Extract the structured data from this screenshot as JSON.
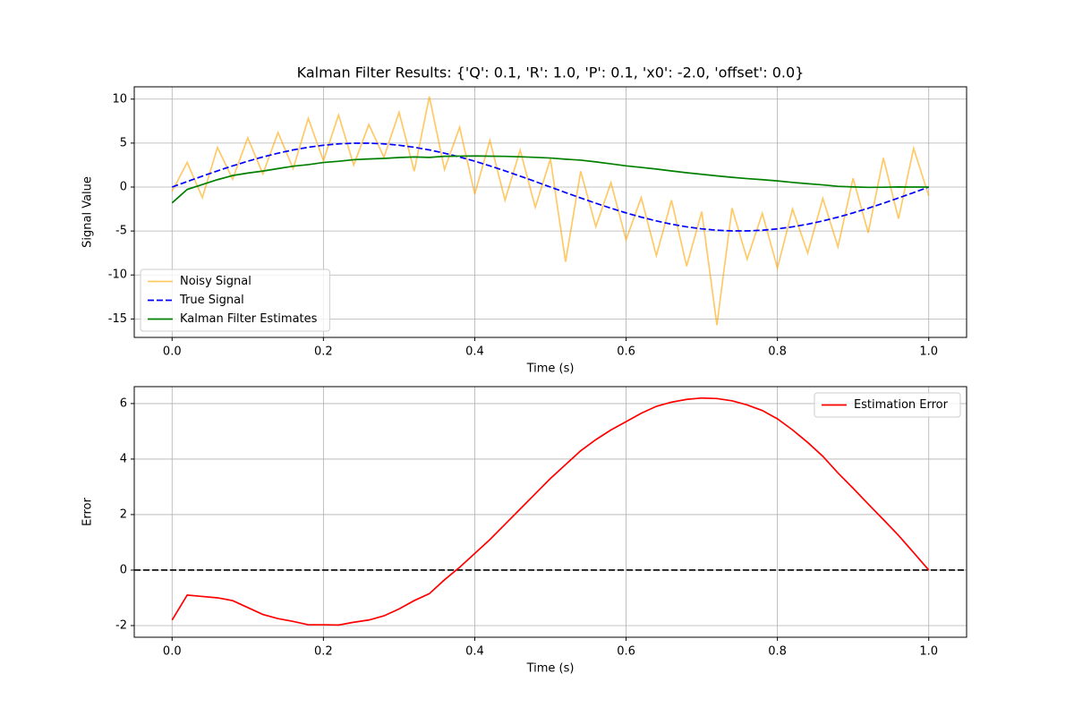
{
  "chart_data": [
    {
      "type": "line",
      "title": "Kalman Filter Results: {'Q': 0.1, 'R': 1.0, 'P': 0.1, 'x0': -2.0, 'offset': 0.0}",
      "x_label": "Time (s)",
      "y_label": "Signal Value",
      "x": [
        0,
        0.02,
        0.04,
        0.06,
        0.08,
        0.1,
        0.12,
        0.14,
        0.16,
        0.18,
        0.2,
        0.22,
        0.24,
        0.26,
        0.28,
        0.3,
        0.32,
        0.34,
        0.36,
        0.38,
        0.4,
        0.42,
        0.44,
        0.46,
        0.48,
        0.5,
        0.52,
        0.54,
        0.56,
        0.58,
        0.6,
        0.62,
        0.64,
        0.66,
        0.68,
        0.7,
        0.72,
        0.74,
        0.76,
        0.78,
        0.8,
        0.82,
        0.84,
        0.86,
        0.88,
        0.9,
        0.92,
        0.94,
        0.96,
        0.98,
        1.0
      ],
      "series": [
        {
          "name": "Noisy Signal",
          "color": "orange",
          "alpha": 0.6,
          "linestyle": "solid",
          "values": [
            -0.5,
            2.8,
            -1.2,
            4.5,
            0.9,
            5.6,
            1.5,
            6.2,
            2.1,
            7.8,
            3.0,
            8.2,
            2.5,
            7.1,
            3.4,
            8.5,
            1.8,
            10.3,
            2.0,
            6.8,
            -0.8,
            5.3,
            -1.5,
            4.2,
            -2.3,
            3.2,
            -8.5,
            1.8,
            -4.5,
            0.5,
            -6.0,
            -1.2,
            -7.8,
            -1.5,
            -9.0,
            -2.8,
            -15.7,
            -2.4,
            -8.2,
            -3.0,
            -9.2,
            -2.5,
            -7.5,
            -1.3,
            -6.8,
            1.0,
            -5.2,
            3.3,
            -3.6,
            4.4,
            -1.0
          ]
        },
        {
          "name": "True Signal",
          "color": "blue",
          "alpha": 1,
          "linestyle": "dashed",
          "values": [
            0,
            0.627,
            1.243,
            1.841,
            2.409,
            2.939,
            3.423,
            3.853,
            4.222,
            4.524,
            4.755,
            4.911,
            4.99,
            4.99,
            4.911,
            4.755,
            4.524,
            4.222,
            3.853,
            3.423,
            2.939,
            2.409,
            1.841,
            1.243,
            0.627,
            0,
            -0.627,
            -1.243,
            -1.841,
            -2.409,
            -2.939,
            -3.423,
            -3.853,
            -4.222,
            -4.524,
            -4.755,
            -4.911,
            -4.99,
            -4.99,
            -4.911,
            -4.755,
            -4.524,
            -4.222,
            -3.853,
            -3.423,
            -2.939,
            -2.409,
            -1.841,
            -1.243,
            -0.627,
            0
          ]
        },
        {
          "name": "Kalman Filter Estimates",
          "color": "green",
          "alpha": 1,
          "linestyle": "solid",
          "values": [
            -1.8,
            -0.27,
            0.29,
            0.84,
            1.31,
            1.59,
            1.82,
            2.1,
            2.37,
            2.55,
            2.79,
            2.93,
            3.11,
            3.19,
            3.26,
            3.36,
            3.42,
            3.37,
            3.5,
            3.52,
            3.54,
            3.51,
            3.49,
            3.44,
            3.38,
            3.3,
            3.17,
            3.06,
            2.86,
            2.64,
            2.41,
            2.23,
            2.05,
            1.83,
            1.63,
            1.45,
            1.27,
            1.11,
            0.96,
            0.84,
            0.7,
            0.53,
            0.38,
            0.25,
            0.08,
            0.01,
            -0.03,
            -0.02,
            0.01,
            0.0,
            0
          ]
        }
      ],
      "xlim": [
        -0.05,
        1.05
      ],
      "ylim": [
        -17.1,
        11.4
      ],
      "xticks": [
        {
          "value": 0,
          "label": "0.0"
        },
        0.2,
        0.4,
        0.6,
        0.8,
        {
          "value": 1,
          "label": "1.0"
        }
      ],
      "yticks": [
        -15,
        -10,
        -5,
        0,
        5,
        10
      ],
      "grid": true,
      "legend": "lower left"
    },
    {
      "type": "line",
      "x_label": "Time (s)",
      "y_label": "Error",
      "x": [
        0,
        0.02,
        0.04,
        0.06,
        0.08,
        0.1,
        0.12,
        0.14,
        0.16,
        0.18,
        0.2,
        0.22,
        0.24,
        0.26,
        0.28,
        0.3,
        0.32,
        0.34,
        0.36,
        0.38,
        0.4,
        0.42,
        0.44,
        0.46,
        0.48,
        0.5,
        0.52,
        0.54,
        0.56,
        0.58,
        0.6,
        0.62,
        0.64,
        0.66,
        0.68,
        0.7,
        0.72,
        0.74,
        0.76,
        0.78,
        0.8,
        0.82,
        0.84,
        0.86,
        0.88,
        0.9,
        0.92,
        0.94,
        0.96,
        0.98,
        1.0
      ],
      "series": [
        {
          "name": "Estimation Error",
          "color": "red",
          "alpha": 1,
          "linestyle": "solid",
          "values": [
            -1.8,
            -0.9,
            -0.95,
            -1.0,
            -1.1,
            -1.35,
            -1.6,
            -1.75,
            -1.85,
            -1.97,
            -1.97,
            -1.98,
            -1.88,
            -1.8,
            -1.65,
            -1.4,
            -1.1,
            -0.85,
            -0.35,
            0.1,
            0.6,
            1.1,
            1.65,
            2.2,
            2.75,
            3.3,
            3.8,
            4.3,
            4.7,
            5.05,
            5.35,
            5.65,
            5.9,
            6.05,
            6.15,
            6.2,
            6.18,
            6.1,
            5.95,
            5.75,
            5.45,
            5.05,
            4.6,
            4.1,
            3.5,
            2.95,
            2.38,
            1.82,
            1.25,
            0.63,
            0
          ]
        }
      ],
      "reference_line": {
        "y": 0,
        "color": "black",
        "linestyle": "dashed"
      },
      "xlim": [
        -0.05,
        1.05
      ],
      "ylim": [
        -2.42,
        6.61
      ],
      "xticks": [
        {
          "value": 0,
          "label": "0.0"
        },
        0.2,
        0.4,
        0.6,
        0.8,
        {
          "value": 1,
          "label": "1.0"
        }
      ],
      "yticks": [
        -2,
        0,
        2,
        4,
        6
      ],
      "grid": true,
      "legend": "upper right"
    }
  ]
}
